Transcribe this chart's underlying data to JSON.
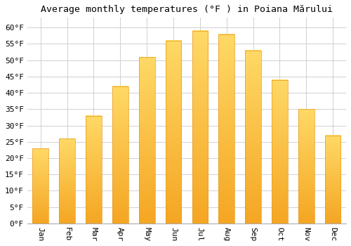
{
  "title": "Average monthly temperatures (°F ) in Poiana Mărului",
  "months": [
    "Jan",
    "Feb",
    "Mar",
    "Apr",
    "May",
    "Jun",
    "Jul",
    "Aug",
    "Sep",
    "Oct",
    "Nov",
    "Dec"
  ],
  "values": [
    23,
    26,
    33,
    42,
    51,
    56,
    59,
    58,
    53,
    44,
    35,
    27
  ],
  "bar_color_top": "#FFD966",
  "bar_color_bottom": "#F5A623",
  "bar_edge_color": "#E89A1E",
  "background_color": "#ffffff",
  "grid_color": "#d0d0d0",
  "ylim": [
    0,
    63
  ],
  "yticks": [
    0,
    5,
    10,
    15,
    20,
    25,
    30,
    35,
    40,
    45,
    50,
    55,
    60
  ],
  "title_fontsize": 9.5,
  "tick_fontsize": 8,
  "font_family": "monospace"
}
